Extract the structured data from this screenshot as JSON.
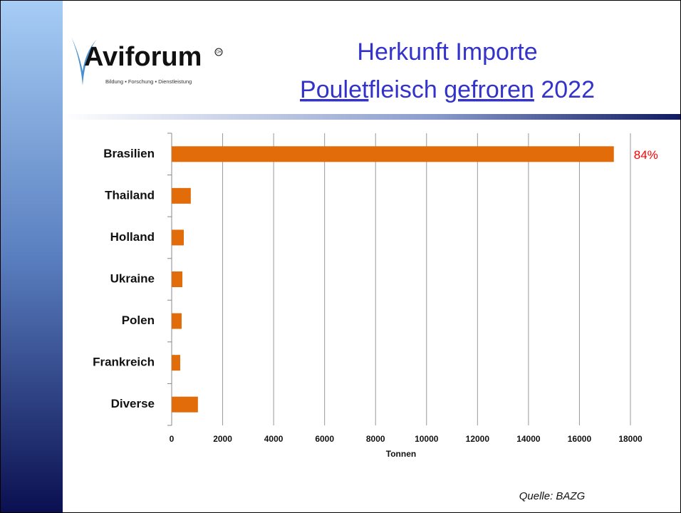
{
  "logo": {
    "name": "Aviforum",
    "mark": "CH",
    "tagline": "Bildung ▪ Forschung ▪ Dienstleistung"
  },
  "title": {
    "line1": "Herkunft Importe",
    "line2": [
      {
        "text": "Poulet",
        "underline": true
      },
      {
        "text": "fleisch ",
        "underline": false
      },
      {
        "text": "gefroren",
        "underline": true
      },
      {
        "text": " 2022",
        "underline": false
      }
    ]
  },
  "source": "Quelle: BAZG",
  "chart_data": {
    "type": "bar",
    "orientation": "horizontal",
    "categories": [
      "Brasilien",
      "Thailand",
      "Holland",
      "Ukraine",
      "Polen",
      "Frankreich",
      "Diverse"
    ],
    "values": [
      17350,
      750,
      475,
      420,
      390,
      335,
      1030
    ],
    "color": "#e36c0a",
    "xlabel": "Tonnen",
    "xlim": [
      0,
      18000
    ],
    "xticks": [
      0,
      2000,
      4000,
      6000,
      8000,
      10000,
      12000,
      14000,
      16000,
      18000
    ],
    "grid": true,
    "annotations": [
      {
        "text": "84%",
        "category": 0,
        "color": "#ff0000"
      }
    ]
  }
}
